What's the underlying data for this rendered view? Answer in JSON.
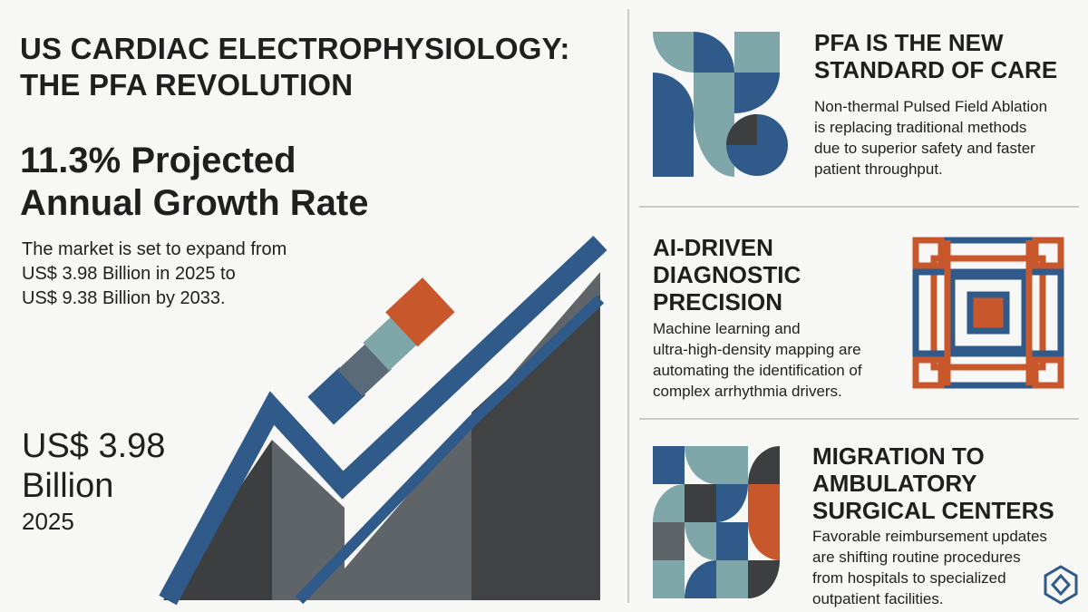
{
  "header": {
    "title": [
      "US CARDIAC ELECTROPHYSIOLOGY:",
      "THE PFA REVOLUTION"
    ]
  },
  "growth": {
    "headline": [
      "11.3% Projected",
      "Annual Growth Rate"
    ],
    "description": [
      "The market is set to expand from",
      "US$ 3.98 Billion in 2025 to",
      "US$ 9.38 Billion by 2033."
    ]
  },
  "market_size": {
    "value": "US$ 3.98",
    "unit": "Billion",
    "year": "2025"
  },
  "cards": [
    {
      "title": [
        "PFA IS THE NEW",
        "STANDARD OF CARE"
      ],
      "body": [
        "Non-thermal Pulsed Field Ablation",
        "is replacing traditional methods",
        "due to superior safety and faster",
        "patient throughput."
      ]
    },
    {
      "title": [
        "AI-DRIVEN",
        "DIAGNOSTIC",
        "PRECISION"
      ],
      "body": [
        "Machine learning and",
        "ultra-high-density mapping are",
        "automating the identification of",
        "complex arrhythmia drivers."
      ]
    },
    {
      "title": [
        "MIGRATION TO",
        "AMBULATORY",
        "SURGICAL CENTERS"
      ],
      "body": [
        "Favorable reimbursement updates",
        "are shifting routine procedures",
        "from hospitals to specialized",
        "outpatient facilities."
      ]
    }
  ]
}
